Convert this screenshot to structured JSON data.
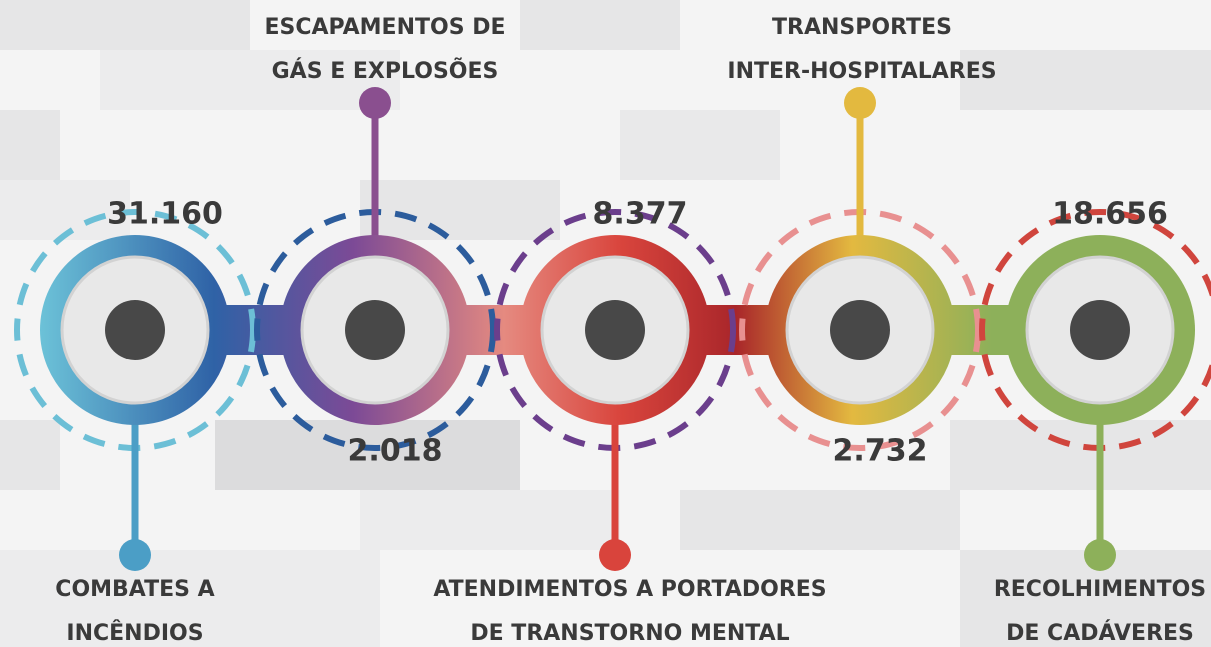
{
  "items": [
    {
      "value": "31.160",
      "label": [
        "COMBATES A",
        "INCÊNDIOS"
      ]
    },
    {
      "value": "2.018",
      "label": [
        "ESCAPAMENTOS DE",
        "GÁS E EXPLOSÕES"
      ]
    },
    {
      "value": "8.377",
      "label": [
        "ATENDIMENTOS A PORTADORES",
        "DE TRANSTORNO MENTAL"
      ]
    },
    {
      "value": "2.732",
      "label": [
        "TRANSPORTES",
        "INTER-HOSPITALARES"
      ]
    },
    {
      "value": "18.656",
      "label": [
        "RECOLHIMENTOS",
        "DE CADÁVERES"
      ]
    }
  ]
}
